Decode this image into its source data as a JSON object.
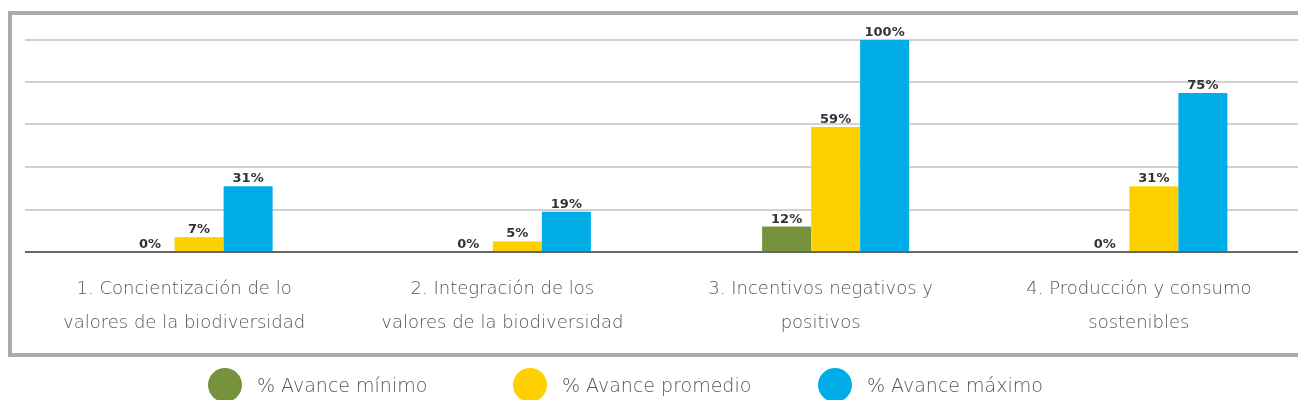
{
  "chart_data": {
    "type": "bar",
    "categories": [
      "1. Concientización de lo valores de la biodiversidad",
      "2. Integración de los valores de la biodiversidad",
      "3. Incentivos negativos y positivos",
      "4. Producción y consumo sostenibles"
    ],
    "series": [
      {
        "name": "% Avance mínimo",
        "color": "#76923c",
        "values": [
          0,
          0,
          12,
          0
        ],
        "value_labels": [
          "0%",
          "0%",
          "12%",
          "0%"
        ]
      },
      {
        "name": "% Avance promedio",
        "color": "#ffd000",
        "values": [
          7,
          5,
          59,
          31
        ],
        "value_labels": [
          "7%",
          "5%",
          "59%",
          "31%"
        ]
      },
      {
        "name": "% Avance máximo",
        "color": "#00ade6",
        "values": [
          31,
          19,
          100,
          75
        ],
        "value_labels": [
          "31%",
          "19%",
          "100%",
          "75%"
        ]
      }
    ],
    "grid": true,
    "legend": "bottom",
    "tick_labels": "x"
  }
}
